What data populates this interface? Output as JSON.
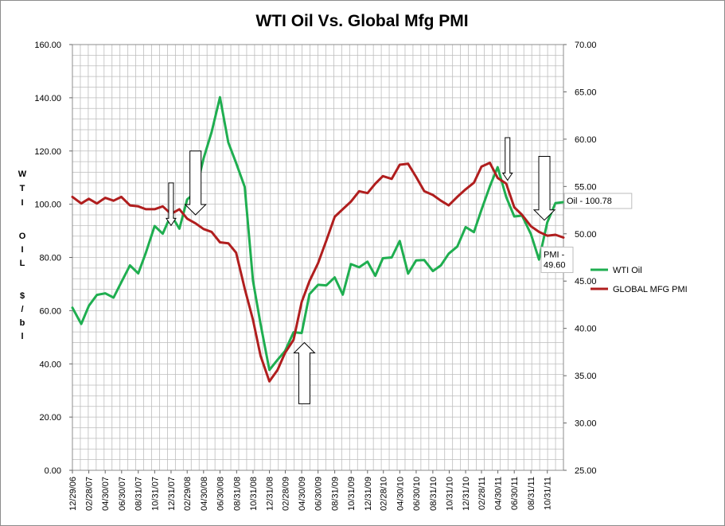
{
  "chart_data": {
    "type": "line",
    "title": "WTI Oil  Vs. Global Mfg PMI",
    "ylabel_left": "WTI OIL $/bl",
    "ylabel_right": "",
    "ylim_left": [
      0,
      160
    ],
    "ylim_right": [
      25,
      70
    ],
    "yticks_left": [
      "0.00",
      "20.00",
      "40.00",
      "60.00",
      "80.00",
      "100.00",
      "120.00",
      "140.00",
      "160.00"
    ],
    "yticks_right": [
      "25.00",
      "30.00",
      "35.00",
      "40.00",
      "45.00",
      "50.00",
      "55.00",
      "60.00",
      "65.00",
      "70.00"
    ],
    "x_ticks": [
      "12/29/06",
      "02/28/07",
      "04/30/07",
      "06/30/07",
      "08/31/07",
      "10/31/07",
      "12/31/07",
      "02/29/08",
      "04/30/08",
      "06/30/08",
      "08/31/08",
      "10/31/08",
      "12/31/08",
      "02/28/09",
      "04/30/09",
      "06/30/09",
      "08/31/09",
      "10/31/09",
      "12/31/09",
      "02/28/10",
      "04/30/10",
      "06/30/10",
      "08/31/10",
      "10/31/10",
      "12/31/10",
      "02/28/11",
      "04/30/11",
      "06/30/11",
      "08/31/11",
      "10/31/11"
    ],
    "x_min": "12/29/06",
    "x_max": "12/30/11",
    "grid": true,
    "legend_position": "right",
    "series": [
      {
        "name": "WTI Oil",
        "color": "#1fae50",
        "axis": "left",
        "values": [
          [
            "12/29/06",
            61.1
          ],
          [
            "01/31/07",
            55.0
          ],
          [
            "02/28/07",
            61.8
          ],
          [
            "03/30/07",
            65.9
          ],
          [
            "04/30/07",
            66.5
          ],
          [
            "05/31/07",
            64.9
          ],
          [
            "06/29/07",
            70.7
          ],
          [
            "07/31/07",
            77.0
          ],
          [
            "08/31/07",
            74.0
          ],
          [
            "09/28/07",
            81.7
          ],
          [
            "10/31/07",
            91.8
          ],
          [
            "11/30/07",
            88.9
          ],
          [
            "12/31/07",
            96.0
          ],
          [
            "01/31/08",
            90.8
          ],
          [
            "02/29/08",
            101.8
          ],
          [
            "03/31/08",
            104.5
          ],
          [
            "04/30/08",
            117.2
          ],
          [
            "05/30/08",
            127.1
          ],
          [
            "06/30/08",
            140.2
          ],
          [
            "07/31/08",
            123.2
          ],
          [
            "08/29/08",
            115.5
          ],
          [
            "09/30/08",
            106.5
          ],
          [
            "10/31/08",
            71.2
          ],
          [
            "11/28/08",
            55.0
          ],
          [
            "12/31/08",
            37.7
          ],
          [
            "01/30/09",
            41.5
          ],
          [
            "02/27/09",
            44.8
          ],
          [
            "03/31/09",
            51.9
          ],
          [
            "04/30/09",
            51.6
          ],
          [
            "05/29/09",
            66.2
          ],
          [
            "06/30/09",
            69.7
          ],
          [
            "07/31/09",
            69.5
          ],
          [
            "08/31/09",
            72.5
          ],
          [
            "09/30/09",
            66.0
          ],
          [
            "10/30/09",
            77.5
          ],
          [
            "11/30/09",
            76.3
          ],
          [
            "12/31/09",
            78.4
          ],
          [
            "01/29/10",
            73.1
          ],
          [
            "02/26/10",
            79.7
          ],
          [
            "03/31/10",
            80.0
          ],
          [
            "04/30/10",
            86.2
          ],
          [
            "05/31/10",
            73.9
          ],
          [
            "06/30/10",
            78.9
          ],
          [
            "07/30/10",
            79.0
          ],
          [
            "08/31/10",
            74.9
          ],
          [
            "09/30/10",
            77.0
          ],
          [
            "10/29/10",
            81.4
          ],
          [
            "11/30/10",
            84.1
          ],
          [
            "12/31/10",
            91.4
          ],
          [
            "01/31/11",
            89.5
          ],
          [
            "02/28/11",
            97.9
          ],
          [
            "03/31/11",
            106.7
          ],
          [
            "04/29/11",
            113.9
          ],
          [
            "05/31/11",
            102.7
          ],
          [
            "06/30/11",
            95.4
          ],
          [
            "07/29/11",
            95.7
          ],
          [
            "08/31/11",
            88.8
          ],
          [
            "09/30/11",
            79.2
          ],
          [
            "10/31/11",
            93.2
          ],
          [
            "11/30/11",
            100.4
          ],
          [
            "12/30/11",
            100.78
          ]
        ]
      },
      {
        "name": "GLOBAL MFG PMI",
        "color": "#b01e1e",
        "axis": "right",
        "values": [
          [
            "12/29/06",
            53.9
          ],
          [
            "01/31/07",
            53.2
          ],
          [
            "02/28/07",
            53.7
          ],
          [
            "03/30/07",
            53.2
          ],
          [
            "04/30/07",
            53.8
          ],
          [
            "05/31/07",
            53.5
          ],
          [
            "06/29/07",
            53.9
          ],
          [
            "07/31/07",
            53.0
          ],
          [
            "08/31/07",
            52.9
          ],
          [
            "09/28/07",
            52.6
          ],
          [
            "10/31/07",
            52.6
          ],
          [
            "11/30/07",
            52.9
          ],
          [
            "12/31/07",
            52.1
          ],
          [
            "01/31/08",
            52.6
          ],
          [
            "02/29/08",
            51.6
          ],
          [
            "03/31/08",
            51.1
          ],
          [
            "04/30/08",
            50.5
          ],
          [
            "05/30/08",
            50.2
          ],
          [
            "06/30/08",
            49.1
          ],
          [
            "07/31/08",
            49.0
          ],
          [
            "08/29/08",
            48.0
          ],
          [
            "09/30/08",
            44.2
          ],
          [
            "10/31/08",
            40.9
          ],
          [
            "11/28/08",
            37.1
          ],
          [
            "12/31/08",
            34.4
          ],
          [
            "01/30/09",
            35.6
          ],
          [
            "02/27/09",
            37.4
          ],
          [
            "03/31/09",
            38.8
          ],
          [
            "04/30/09",
            42.8
          ],
          [
            "05/29/09",
            45.0
          ],
          [
            "06/30/09",
            46.9
          ],
          [
            "07/31/09",
            49.3
          ],
          [
            "08/31/09",
            51.8
          ],
          [
            "09/30/09",
            52.6
          ],
          [
            "10/30/09",
            53.4
          ],
          [
            "11/30/09",
            54.5
          ],
          [
            "12/31/09",
            54.3
          ],
          [
            "01/29/10",
            55.3
          ],
          [
            "02/26/10",
            56.1
          ],
          [
            "03/31/10",
            55.8
          ],
          [
            "04/30/10",
            57.3
          ],
          [
            "05/31/10",
            57.4
          ],
          [
            "06/30/10",
            56.0
          ],
          [
            "07/30/10",
            54.5
          ],
          [
            "08/31/10",
            54.1
          ],
          [
            "09/30/10",
            53.5
          ],
          [
            "10/29/10",
            53.0
          ],
          [
            "11/30/10",
            53.9
          ],
          [
            "12/31/10",
            54.7
          ],
          [
            "01/31/11",
            55.4
          ],
          [
            "02/28/11",
            57.1
          ],
          [
            "03/31/11",
            57.5
          ],
          [
            "04/29/11",
            55.9
          ],
          [
            "05/31/11",
            55.3
          ],
          [
            "06/30/11",
            52.8
          ],
          [
            "07/29/11",
            52.0
          ],
          [
            "08/31/11",
            50.8
          ],
          [
            "09/30/11",
            50.2
          ],
          [
            "10/31/11",
            49.8
          ],
          [
            "11/30/11",
            49.9
          ],
          [
            "12/30/11",
            49.6
          ]
        ]
      }
    ],
    "callouts": [
      {
        "lines": [
          "Oil - 100.78"
        ],
        "series": "WTI Oil",
        "date": "12/30/11",
        "value": 100.78
      },
      {
        "lines": [
          "PMI -",
          "49.60"
        ],
        "series": "GLOBAL MFG PMI",
        "date": "12/30/11",
        "value": 49.6
      }
    ],
    "arrows": [
      {
        "direction": "down",
        "date": "12/31/07",
        "from": 108,
        "to": 92,
        "width": "thin"
      },
      {
        "direction": "down",
        "date": "03/31/08",
        "from": 120,
        "to": 96,
        "width": "wide"
      },
      {
        "direction": "up",
        "date": "05/10/09",
        "from": 25,
        "to": 48,
        "width": "wide"
      },
      {
        "direction": "down",
        "date": "06/05/11",
        "from": 125,
        "to": 109,
        "width": "thin"
      },
      {
        "direction": "down",
        "date": "10/20/11",
        "from": 118,
        "to": 94,
        "width": "wide"
      }
    ]
  }
}
